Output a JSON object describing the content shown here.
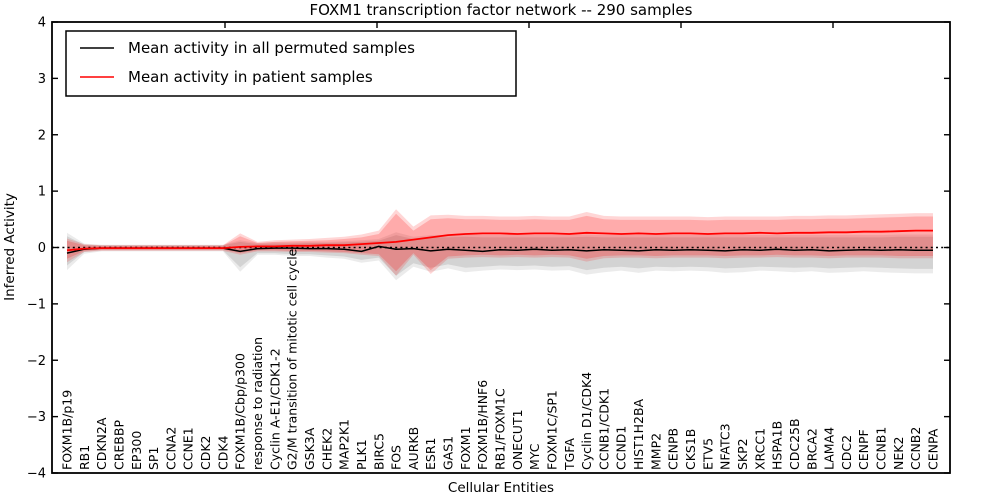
{
  "title": "FOXM1 transcription factor network -- 290 samples",
  "legend": {
    "items": [
      {
        "label": "Mean activity in all permuted samples",
        "color": "#000000"
      },
      {
        "label": "Mean activity in patient samples",
        "color": "#ff0000"
      }
    ]
  },
  "axes": {
    "xlabel": "Cellular Entities",
    "ylabel": "Inferred Activity",
    "y_ticks": [
      4,
      3,
      2,
      1,
      0,
      -1,
      -2,
      -3,
      -4
    ],
    "ylim": [
      -4,
      4
    ]
  },
  "chart_data": {
    "type": "line",
    "title": "FOXM1 transcription factor network -- 290 samples",
    "xlabel": "Cellular Entities",
    "ylabel": "Inferred Activity",
    "ylim": [
      -4,
      4
    ],
    "grid": false,
    "legend_position": "upper left",
    "zero_line": {
      "y": 0,
      "style": "dotted",
      "color": "#000000"
    },
    "categories": [
      "FOXM1B/p19",
      "RB1",
      "CDKN2A",
      "CREBBP",
      "EP300",
      "SP1",
      "CCNA2",
      "CCNE1",
      "CDK2",
      "CDK4",
      "FOXM1B/Cbp/p300",
      "response to radiation",
      "Cyclin A-E1/CDK1-2",
      "G2/M transition of mitotic cell cycle",
      "GSK3A",
      "CHEK2",
      "MAP2K1",
      "PLK1",
      "BIRC5",
      "FOS",
      "AURKB",
      "ESR1",
      "GAS1",
      "FOXM1",
      "FOXM1B/HNF6",
      "RB1/FOXM1C",
      "ONECUT1",
      "MYC",
      "FOXM1C/SP1",
      "TGFA",
      "Cyclin D1/CDK4",
      "CCNB1/CDK1",
      "CCND1",
      "HIST1H2BA",
      "MMP2",
      "CENPB",
      "CKS1B",
      "ETV5",
      "NFATC3",
      "SKP2",
      "XRCC1",
      "HSPA1B",
      "CDC25B",
      "BRCA2",
      "LAMA4",
      "CDC2",
      "CENPF",
      "CCNB1",
      "NEK2",
      "CCNB2",
      "CENPA"
    ],
    "series": [
      {
        "name": "Mean activity in all permuted samples",
        "color": "#000000",
        "width": 1.5,
        "values": [
          -0.1,
          -0.03,
          -0.01,
          -0.01,
          -0.01,
          -0.01,
          -0.01,
          -0.01,
          -0.01,
          -0.01,
          -0.07,
          -0.02,
          -0.01,
          -0.01,
          -0.02,
          -0.02,
          -0.03,
          -0.07,
          0.02,
          -0.03,
          -0.02,
          -0.06,
          -0.03,
          -0.05,
          -0.07,
          -0.04,
          -0.05,
          -0.03,
          -0.05,
          -0.04,
          -0.06,
          -0.04,
          -0.05,
          -0.06,
          -0.04,
          -0.05,
          -0.04,
          -0.05,
          -0.06,
          -0.04,
          -0.05,
          -0.03,
          -0.05,
          -0.04,
          -0.06,
          -0.05,
          -0.04,
          -0.05,
          -0.04,
          -0.05,
          -0.05
        ]
      },
      {
        "name": "Mean activity in patient samples",
        "color": "#ff0000",
        "width": 1.8,
        "values": [
          -0.05,
          -0.02,
          -0.01,
          -0.01,
          -0.01,
          -0.01,
          -0.01,
          -0.01,
          -0.01,
          -0.01,
          0.01,
          0.02,
          0.02,
          0.03,
          0.03,
          0.04,
          0.04,
          0.06,
          0.08,
          0.1,
          0.14,
          0.18,
          0.22,
          0.24,
          0.25,
          0.25,
          0.24,
          0.25,
          0.25,
          0.24,
          0.26,
          0.25,
          0.24,
          0.25,
          0.24,
          0.25,
          0.25,
          0.24,
          0.25,
          0.25,
          0.26,
          0.25,
          0.26,
          0.26,
          0.27,
          0.27,
          0.28,
          0.28,
          0.29,
          0.3,
          0.3
        ]
      }
    ],
    "bands": [
      {
        "name": "permuted-outer",
        "color": "rgba(0,0,0,0.08)",
        "lo": [
          -0.4,
          -0.11,
          -0.07,
          -0.07,
          -0.07,
          -0.07,
          -0.07,
          -0.07,
          -0.07,
          -0.07,
          -0.43,
          -0.13,
          -0.13,
          -0.15,
          -0.15,
          -0.18,
          -0.2,
          -0.27,
          -0.23,
          -0.58,
          -0.34,
          -0.43,
          -0.37,
          -0.44,
          -0.41,
          -0.39,
          -0.4,
          -0.39,
          -0.41,
          -0.4,
          -0.48,
          -0.44,
          -0.41,
          -0.45,
          -0.41,
          -0.42,
          -0.41,
          -0.42,
          -0.45,
          -0.44,
          -0.41,
          -0.42,
          -0.44,
          -0.42,
          -0.45,
          -0.44,
          -0.42,
          -0.44,
          -0.45,
          -0.46,
          -0.46
        ],
        "hi": [
          0.26,
          0.07,
          0.05,
          0.05,
          0.05,
          0.05,
          0.05,
          0.05,
          0.05,
          0.05,
          0.13,
          0.08,
          0.09,
          0.09,
          0.1,
          0.1,
          0.11,
          0.13,
          0.15,
          0.27,
          0.19,
          0.22,
          0.22,
          0.23,
          0.22,
          0.22,
          0.22,
          0.22,
          0.22,
          0.22,
          0.23,
          0.22,
          0.22,
          0.22,
          0.22,
          0.22,
          0.22,
          0.22,
          0.22,
          0.22,
          0.22,
          0.22,
          0.22,
          0.22,
          0.22,
          0.22,
          0.22,
          0.22,
          0.23,
          0.23,
          0.23
        ]
      },
      {
        "name": "permuted-inner",
        "color": "rgba(0,0,0,0.10)",
        "lo": [
          -0.32,
          -0.08,
          -0.05,
          -0.05,
          -0.05,
          -0.05,
          -0.05,
          -0.05,
          -0.05,
          -0.05,
          -0.35,
          -0.1,
          -0.1,
          -0.12,
          -0.12,
          -0.14,
          -0.16,
          -0.22,
          -0.18,
          -0.5,
          -0.28,
          -0.36,
          -0.3,
          -0.36,
          -0.34,
          -0.32,
          -0.33,
          -0.32,
          -0.34,
          -0.33,
          -0.4,
          -0.36,
          -0.34,
          -0.37,
          -0.34,
          -0.35,
          -0.34,
          -0.35,
          -0.37,
          -0.36,
          -0.34,
          -0.35,
          -0.36,
          -0.35,
          -0.37,
          -0.36,
          -0.35,
          -0.36,
          -0.37,
          -0.38,
          -0.38
        ],
        "hi": [
          0.2,
          0.05,
          0.04,
          0.04,
          0.04,
          0.04,
          0.04,
          0.04,
          0.04,
          0.04,
          0.1,
          0.06,
          0.07,
          0.07,
          0.08,
          0.08,
          0.09,
          0.1,
          0.12,
          0.22,
          0.15,
          0.18,
          0.18,
          0.19,
          0.18,
          0.18,
          0.18,
          0.18,
          0.18,
          0.18,
          0.19,
          0.18,
          0.18,
          0.18,
          0.18,
          0.18,
          0.18,
          0.18,
          0.18,
          0.18,
          0.18,
          0.18,
          0.18,
          0.18,
          0.18,
          0.18,
          0.18,
          0.18,
          0.19,
          0.19,
          0.19
        ]
      },
      {
        "name": "patient-outer",
        "color": "rgba(255,0,0,0.16)",
        "lo": [
          -0.26,
          -0.08,
          -0.06,
          -0.06,
          -0.06,
          -0.06,
          -0.06,
          -0.06,
          -0.06,
          -0.06,
          -0.13,
          -0.07,
          -0.07,
          -0.08,
          -0.08,
          -0.09,
          -0.1,
          -0.13,
          -0.15,
          -0.5,
          -0.13,
          -0.47,
          -0.2,
          -0.18,
          -0.17,
          -0.18,
          -0.17,
          -0.18,
          -0.17,
          -0.18,
          -0.25,
          -0.19,
          -0.18,
          -0.18,
          -0.19,
          -0.18,
          -0.18,
          -0.18,
          -0.19,
          -0.18,
          -0.18,
          -0.17,
          -0.18,
          -0.18,
          -0.19,
          -0.18,
          -0.18,
          -0.18,
          -0.19,
          -0.19,
          -0.19
        ],
        "hi": [
          0.16,
          0.06,
          0.04,
          0.04,
          0.04,
          0.04,
          0.04,
          0.04,
          0.04,
          0.04,
          0.25,
          0.1,
          0.13,
          0.14,
          0.15,
          0.17,
          0.19,
          0.23,
          0.3,
          0.68,
          0.37,
          0.57,
          0.58,
          0.56,
          0.56,
          0.55,
          0.55,
          0.56,
          0.55,
          0.55,
          0.63,
          0.56,
          0.55,
          0.55,
          0.55,
          0.55,
          0.55,
          0.54,
          0.55,
          0.55,
          0.55,
          0.55,
          0.56,
          0.56,
          0.57,
          0.57,
          0.58,
          0.59,
          0.6,
          0.61,
          0.61
        ]
      },
      {
        "name": "patient-inner",
        "color": "rgba(255,0,0,0.20)",
        "lo": [
          -0.2,
          -0.06,
          -0.04,
          -0.04,
          -0.04,
          -0.04,
          -0.04,
          -0.04,
          -0.04,
          -0.04,
          -0.1,
          -0.05,
          -0.05,
          -0.06,
          -0.06,
          -0.07,
          -0.08,
          -0.1,
          -0.12,
          -0.42,
          -0.1,
          -0.4,
          -0.16,
          -0.14,
          -0.13,
          -0.14,
          -0.13,
          -0.14,
          -0.13,
          -0.14,
          -0.2,
          -0.15,
          -0.14,
          -0.14,
          -0.15,
          -0.14,
          -0.14,
          -0.14,
          -0.15,
          -0.14,
          -0.14,
          -0.13,
          -0.14,
          -0.14,
          -0.15,
          -0.14,
          -0.14,
          -0.14,
          -0.15,
          -0.15,
          -0.15
        ],
        "hi": [
          0.12,
          0.04,
          0.03,
          0.03,
          0.03,
          0.03,
          0.03,
          0.03,
          0.03,
          0.03,
          0.2,
          0.08,
          0.1,
          0.11,
          0.12,
          0.13,
          0.15,
          0.18,
          0.24,
          0.6,
          0.3,
          0.5,
          0.52,
          0.5,
          0.5,
          0.49,
          0.49,
          0.5,
          0.49,
          0.49,
          0.56,
          0.5,
          0.49,
          0.49,
          0.49,
          0.49,
          0.49,
          0.48,
          0.49,
          0.49,
          0.49,
          0.49,
          0.5,
          0.5,
          0.51,
          0.51,
          0.52,
          0.53,
          0.54,
          0.55,
          0.55
        ]
      }
    ]
  }
}
